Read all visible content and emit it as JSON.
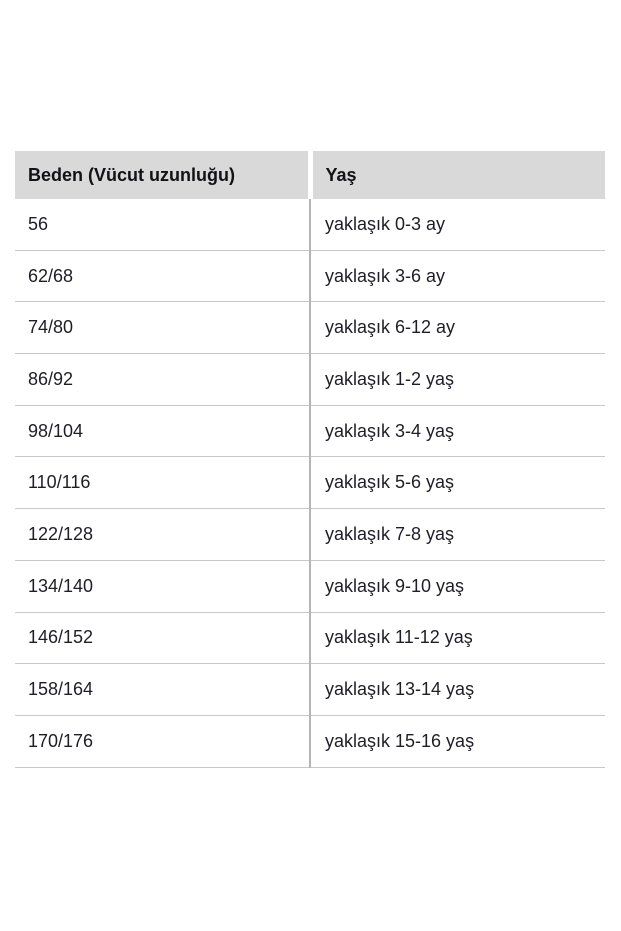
{
  "table": {
    "columns": [
      {
        "label": "Beden (Vücut uzunluğu)"
      },
      {
        "label": "Yaş"
      }
    ],
    "rows": [
      {
        "size": "56",
        "age": "yaklaşık 0-3 ay"
      },
      {
        "size": "62/68",
        "age": "yaklaşık 3-6 ay"
      },
      {
        "size": "74/80",
        "age": "yaklaşık 6-12 ay"
      },
      {
        "size": "86/92",
        "age": "yaklaşık 1-2 yaş"
      },
      {
        "size": "98/104",
        "age": "yaklaşık 3-4 yaş"
      },
      {
        "size": "110/116",
        "age": "yaklaşık 5-6 yaş"
      },
      {
        "size": "122/128",
        "age": "yaklaşık 7-8 yaş"
      },
      {
        "size": "134/140",
        "age": "yaklaşık 9-10 yaş"
      },
      {
        "size": "146/152",
        "age": "yaklaşık 11-12 yaş"
      },
      {
        "size": "158/164",
        "age": "yaklaşık 13-14 yaş"
      },
      {
        "size": "170/176",
        "age": "yaklaşık 15-16 yaş"
      }
    ]
  },
  "colors": {
    "page_background": "#ffffff",
    "header_background": "#d9d9d9",
    "row_divider": "#c9c9c9",
    "column_divider": "#b5b5b5",
    "header_text": "#121216",
    "cell_text": "#1e1e26"
  }
}
